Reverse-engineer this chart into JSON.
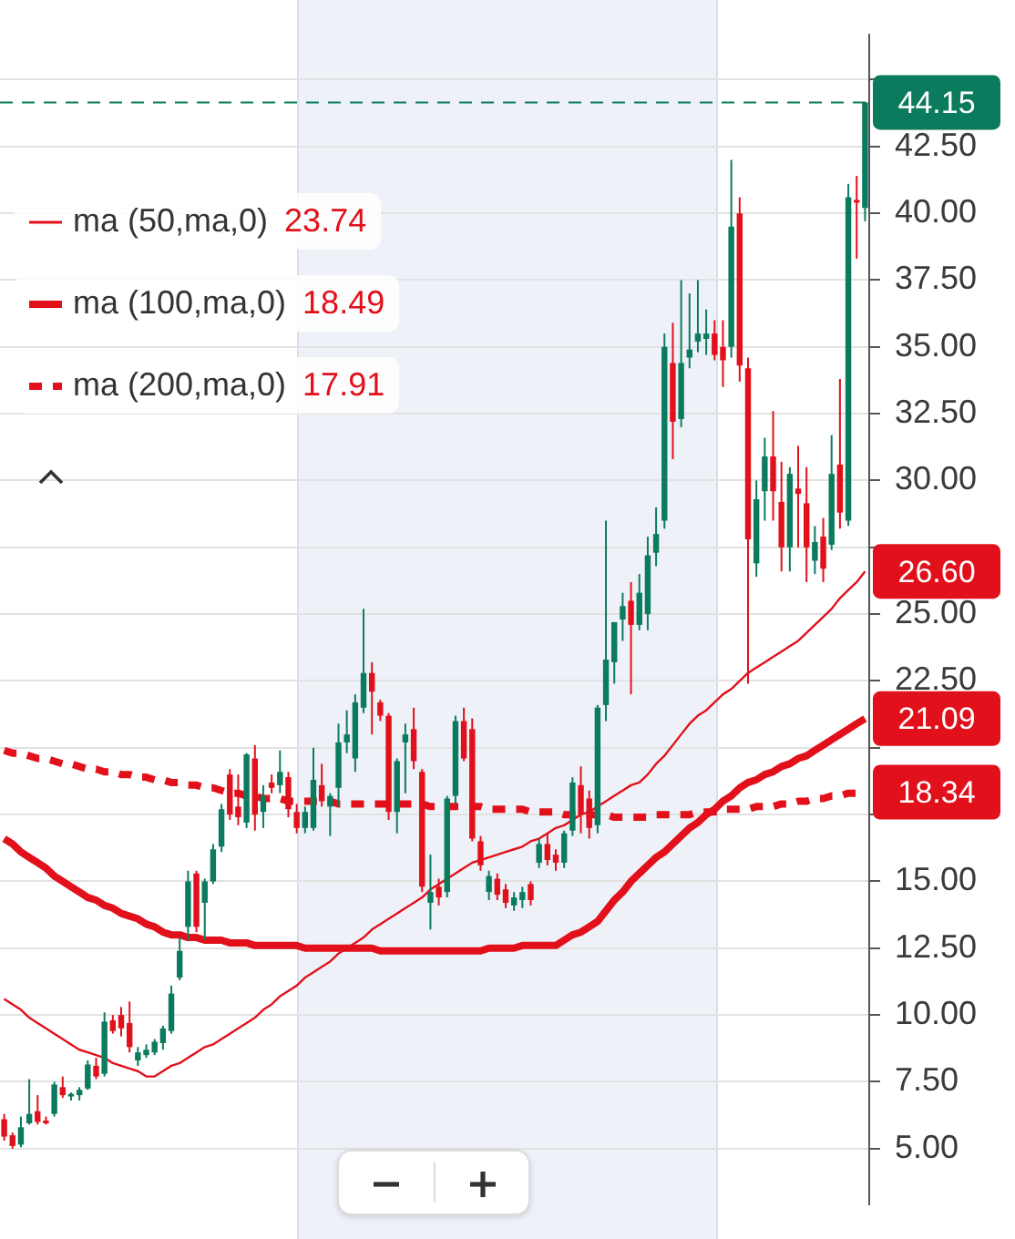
{
  "chart_data": {
    "type": "candlestick",
    "categories": [
      null,
      null,
      null,
      null,
      null,
      null,
      null,
      null,
      null,
      null,
      null,
      null,
      null,
      null,
      null,
      null,
      null,
      null,
      null,
      null,
      null,
      null,
      null,
      null,
      null,
      null,
      null,
      null,
      null,
      null,
      null,
      null,
      null,
      null,
      null,
      null,
      null,
      null,
      null,
      null,
      null,
      null,
      null,
      null,
      null,
      null,
      null,
      null,
      null,
      null,
      null,
      null,
      null,
      null,
      null,
      null,
      null,
      null,
      null,
      null,
      null,
      null,
      null,
      null,
      null,
      null,
      null,
      null,
      null,
      null,
      null,
      null,
      null,
      null,
      null,
      null,
      null,
      null,
      null,
      null,
      null,
      null,
      null,
      null,
      null,
      null,
      null,
      null,
      null,
      null,
      null,
      null,
      null,
      null,
      null,
      null,
      null,
      null,
      null,
      null,
      null,
      null,
      null,
      null
    ],
    "ohlc": [
      [
        6.1,
        6.3,
        5.3,
        5.45
      ],
      [
        5.5,
        5.6,
        5.0,
        5.1
      ],
      [
        5.15,
        6.2,
        5.05,
        5.8
      ],
      [
        5.95,
        7.6,
        5.9,
        6.3
      ],
      [
        6.4,
        7.0,
        5.9,
        6.0
      ],
      [
        6.05,
        6.2,
        5.9,
        5.95
      ],
      [
        6.3,
        7.5,
        6.2,
        7.4
      ],
      [
        7.3,
        7.7,
        6.9,
        7.0
      ],
      [
        6.95,
        7.1,
        6.8,
        7.05
      ],
      [
        7.0,
        7.3,
        6.8,
        7.2
      ],
      [
        7.25,
        8.3,
        7.2,
        8.15
      ],
      [
        8.1,
        8.4,
        7.6,
        7.7
      ],
      [
        7.8,
        10.1,
        7.7,
        9.75
      ],
      [
        9.8,
        10.0,
        9.3,
        9.4
      ],
      [
        10.0,
        10.3,
        9.2,
        9.5
      ],
      [
        9.7,
        10.5,
        8.6,
        8.8
      ],
      [
        8.3,
        8.8,
        8.1,
        8.6
      ],
      [
        8.5,
        8.9,
        8.4,
        8.7
      ],
      [
        8.6,
        9.1,
        8.5,
        9.0
      ],
      [
        8.95,
        9.6,
        8.7,
        9.5
      ],
      [
        9.4,
        11.1,
        9.3,
        10.8
      ],
      [
        11.4,
        12.9,
        11.3,
        12.4
      ],
      [
        13.3,
        15.4,
        12.8,
        15.0
      ],
      [
        15.3,
        15.4,
        13.1,
        13.3
      ],
      [
        14.2,
        15.1,
        12.8,
        15.0
      ],
      [
        15.0,
        16.4,
        14.9,
        16.2
      ],
      [
        16.3,
        17.9,
        16.1,
        17.7
      ],
      [
        19.0,
        19.2,
        17.3,
        17.5
      ],
      [
        17.8,
        19.0,
        17.1,
        17.4
      ],
      [
        17.2,
        19.8,
        17.0,
        19.75
      ],
      [
        19.6,
        20.1,
        16.9,
        17.5
      ],
      [
        17.6,
        18.6,
        17.0,
        18.2
      ],
      [
        18.7,
        19.0,
        18.3,
        18.5
      ],
      [
        18.6,
        19.9,
        18.3,
        19.1
      ],
      [
        18.9,
        19.1,
        17.4,
        17.7
      ],
      [
        17.6,
        17.9,
        16.8,
        17.0
      ],
      [
        17.0,
        17.8,
        16.8,
        17.6
      ],
      [
        17.0,
        20.0,
        16.9,
        18.8
      ],
      [
        18.6,
        19.4,
        17.8,
        18.0
      ],
      [
        17.8,
        18.3,
        16.7,
        18.2
      ],
      [
        18.5,
        20.9,
        17.8,
        20.2
      ],
      [
        20.2,
        21.4,
        19.8,
        20.5
      ],
      [
        19.6,
        22.0,
        19.1,
        21.7
      ],
      [
        21.5,
        25.2,
        21.3,
        22.8
      ],
      [
        22.8,
        23.2,
        20.5,
        22.1
      ],
      [
        21.7,
        21.8,
        21.0,
        21.2
      ],
      [
        21.2,
        21.3,
        17.3,
        17.6
      ],
      [
        17.6,
        19.6,
        16.8,
        19.5
      ],
      [
        20.2,
        20.9,
        18.3,
        20.5
      ],
      [
        20.7,
        21.5,
        19.2,
        19.5
      ],
      [
        19.1,
        19.2,
        14.6,
        14.8
      ],
      [
        14.2,
        16.0,
        13.2,
        14.6
      ],
      [
        14.8,
        15.1,
        14.1,
        14.4
      ],
      [
        14.6,
        18.2,
        14.4,
        18.1
      ],
      [
        18.2,
        21.2,
        17.9,
        21.0
      ],
      [
        21.0,
        21.5,
        19.5,
        19.6
      ],
      [
        20.7,
        21.1,
        16.5,
        16.6
      ],
      [
        16.5,
        16.7,
        15.4,
        15.6
      ],
      [
        14.6,
        15.4,
        14.3,
        15.2
      ],
      [
        15.1,
        15.3,
        14.3,
        14.5
      ],
      [
        14.7,
        14.9,
        14.0,
        14.2
      ],
      [
        14.1,
        14.6,
        13.9,
        14.4
      ],
      [
        14.3,
        14.8,
        14.0,
        14.6
      ],
      [
        14.9,
        15.0,
        14.1,
        14.3
      ],
      [
        15.7,
        16.6,
        15.5,
        16.4
      ],
      [
        16.4,
        16.8,
        15.6,
        15.8
      ],
      [
        16.0,
        16.2,
        15.4,
        15.7
      ],
      [
        15.7,
        16.9,
        15.5,
        16.8
      ],
      [
        16.9,
        18.9,
        16.7,
        18.7
      ],
      [
        18.6,
        19.3,
        16.8,
        17.5
      ],
      [
        18.1,
        18.4,
        16.6,
        17.0
      ],
      [
        17.1,
        21.6,
        16.8,
        21.5
      ],
      [
        21.6,
        28.5,
        21.0,
        23.3
      ],
      [
        23.2,
        24.7,
        22.4,
        24.7
      ],
      [
        24.8,
        25.8,
        24.0,
        25.3
      ],
      [
        25.5,
        26.2,
        22.0,
        24.6
      ],
      [
        24.6,
        26.5,
        24.4,
        25.8
      ],
      [
        25.0,
        27.9,
        24.4,
        27.2
      ],
      [
        27.3,
        29.0,
        26.8,
        28.0
      ],
      [
        28.5,
        35.5,
        28.2,
        35.0
      ],
      [
        34.4,
        35.9,
        30.8,
        32.2
      ],
      [
        32.3,
        37.5,
        32.0,
        34.4
      ],
      [
        34.6,
        37.0,
        34.2,
        34.9
      ],
      [
        35.2,
        37.5,
        34.8,
        35.5
      ],
      [
        35.3,
        36.4,
        34.7,
        35.5
      ],
      [
        35.5,
        36.0,
        34.5,
        34.7
      ],
      [
        35.0,
        36.0,
        33.5,
        34.5
      ],
      [
        35.0,
        42.0,
        34.6,
        39.5
      ],
      [
        40.0,
        40.6,
        33.7,
        34.3
      ],
      [
        34.2,
        34.6,
        22.4,
        27.8
      ],
      [
        26.9,
        30.0,
        26.4,
        29.3
      ],
      [
        29.6,
        31.6,
        28.5,
        30.9
      ],
      [
        30.9,
        32.6,
        28.5,
        29.6
      ],
      [
        29.2,
        30.7,
        26.6,
        27.5
      ],
      [
        27.5,
        30.5,
        26.6,
        30.25
      ],
      [
        29.7,
        31.3,
        27.5,
        29.5
      ],
      [
        29.15,
        30.5,
        26.2,
        27.5
      ],
      [
        27.0,
        28.3,
        26.5,
        27.7
      ],
      [
        27.9,
        28.6,
        26.2,
        26.7
      ],
      [
        27.6,
        31.7,
        27.4,
        30.25
      ],
      [
        30.6,
        33.8,
        28.2,
        28.8
      ],
      [
        28.5,
        41.1,
        28.3,
        40.6
      ],
      [
        40.5,
        41.4,
        38.3,
        40.4
      ],
      [
        40.2,
        44.15,
        39.7,
        44.15
      ]
    ],
    "colors": [
      "#e2101b",
      "#e2101b",
      "#0b7b5e",
      "#0b7b5e",
      "#e2101b",
      "#e2101b",
      "#0b7b5e",
      "#e2101b",
      "#0b7b5e",
      "#0b7b5e",
      "#0b7b5e",
      "#e2101b",
      "#0b7b5e",
      "#e2101b",
      "#e2101b",
      "#e2101b",
      "#0b7b5e",
      "#0b7b5e",
      "#0b7b5e",
      "#0b7b5e",
      "#0b7b5e",
      "#0b7b5e",
      "#0b7b5e",
      "#e2101b",
      "#0b7b5e",
      "#0b7b5e",
      "#0b7b5e",
      "#e2101b",
      "#e2101b",
      "#0b7b5e",
      "#e2101b",
      "#0b7b5e",
      "#e2101b",
      "#0b7b5e",
      "#e2101b",
      "#e2101b",
      "#0b7b5e",
      "#0b7b5e",
      "#e2101b",
      "#0b7b5e",
      "#0b7b5e",
      "#0b7b5e",
      "#0b7b5e",
      "#0b7b5e",
      "#e2101b",
      "#e2101b",
      "#e2101b",
      "#0b7b5e",
      "#0b7b5e",
      "#e2101b",
      "#e2101b",
      "#0b7b5e",
      "#e2101b",
      "#0b7b5e",
      "#0b7b5e",
      "#e2101b",
      "#e2101b",
      "#e2101b",
      "#0b7b5e",
      "#e2101b",
      "#e2101b",
      "#0b7b5e",
      "#0b7b5e",
      "#e2101b",
      "#0b7b5e",
      "#e2101b",
      "#e2101b",
      "#0b7b5e",
      "#0b7b5e",
      "#e2101b",
      "#e2101b",
      "#0b7b5e",
      "#0b7b5e",
      "#0b7b5e",
      "#0b7b5e",
      "#e2101b",
      "#0b7b5e",
      "#0b7b5e",
      "#0b7b5e",
      "#0b7b5e",
      "#e2101b",
      "#0b7b5e",
      "#0b7b5e",
      "#0b7b5e",
      "#0b7b5e",
      "#e2101b",
      "#e2101b",
      "#0b7b5e",
      "#e2101b",
      "#e2101b",
      "#0b7b5e",
      "#0b7b5e",
      "#e2101b",
      "#e2101b",
      "#0b7b5e",
      "#e2101b",
      "#e2101b",
      "#0b7b5e",
      "#e2101b",
      "#0b7b5e",
      "#e2101b",
      "#0b7b5e",
      "#e2101b",
      "#0b7b5e"
    ],
    "series": [
      {
        "name": "ma (50,ma,0)",
        "type": "line",
        "color": "#e2101b",
        "line_style": "solid",
        "values": [
          10.6,
          10.4,
          10.2,
          9.9,
          9.7,
          9.5,
          9.3,
          9.1,
          8.9,
          8.7,
          8.6,
          8.5,
          8.4,
          8.2,
          8.1,
          8.0,
          7.9,
          7.7,
          7.7,
          7.9,
          8.1,
          8.2,
          8.4,
          8.6,
          8.8,
          8.9,
          9.1,
          9.3,
          9.5,
          9.7,
          9.9,
          10.2,
          10.4,
          10.7,
          10.9,
          11.1,
          11.4,
          11.6,
          11.8,
          12.0,
          12.3,
          12.5,
          12.7,
          12.9,
          13.2,
          13.4,
          13.6,
          13.8,
          14.0,
          14.2,
          14.4,
          14.7,
          14.9,
          15.1,
          15.3,
          15.5,
          15.7,
          15.8,
          15.9,
          16.0,
          16.1,
          16.2,
          16.3,
          16.5,
          16.6,
          16.8,
          17.0,
          17.1,
          17.3,
          17.5,
          17.6,
          17.8,
          18.0,
          18.2,
          18.4,
          18.6,
          18.7,
          19.0,
          19.4,
          19.7,
          20.1,
          20.5,
          20.9,
          21.2,
          21.4,
          21.7,
          22.0,
          22.2,
          22.5,
          22.8,
          23.0,
          23.2,
          23.4,
          23.6,
          23.8,
          24.0,
          24.3,
          24.6,
          24.9,
          25.2,
          25.6,
          25.9,
          26.2,
          26.6
        ]
      },
      {
        "name": "ma (100,ma,0)",
        "type": "line",
        "color": "#e2101b",
        "line_style": "solid",
        "values": [
          16.6,
          16.4,
          16.1,
          15.9,
          15.7,
          15.5,
          15.2,
          15.0,
          14.8,
          14.6,
          14.4,
          14.3,
          14.1,
          14.0,
          13.8,
          13.7,
          13.6,
          13.4,
          13.3,
          13.1,
          13.0,
          13.0,
          12.9,
          12.9,
          12.8,
          12.8,
          12.8,
          12.7,
          12.7,
          12.7,
          12.6,
          12.6,
          12.6,
          12.6,
          12.6,
          12.6,
          12.5,
          12.5,
          12.5,
          12.5,
          12.5,
          12.5,
          12.5,
          12.5,
          12.5,
          12.4,
          12.4,
          12.4,
          12.4,
          12.4,
          12.4,
          12.4,
          12.4,
          12.4,
          12.4,
          12.4,
          12.4,
          12.4,
          12.5,
          12.5,
          12.5,
          12.5,
          12.6,
          12.6,
          12.6,
          12.6,
          12.6,
          12.8,
          13.0,
          13.1,
          13.3,
          13.5,
          13.9,
          14.3,
          14.6,
          15.0,
          15.3,
          15.6,
          15.9,
          16.1,
          16.4,
          16.7,
          17.0,
          17.2,
          17.5,
          17.7,
          18.0,
          18.2,
          18.5,
          18.7,
          18.8,
          19.0,
          19.1,
          19.3,
          19.4,
          19.6,
          19.7,
          19.9,
          20.1,
          20.3,
          20.5,
          20.7,
          20.9,
          21.09
        ]
      },
      {
        "name": "ma (200,ma,0)",
        "type": "line",
        "color": "#e2101b",
        "line_style": "dotted",
        "values": [
          19.9,
          19.8,
          19.8,
          19.7,
          19.6,
          19.6,
          19.5,
          19.4,
          19.4,
          19.3,
          19.2,
          19.2,
          19.1,
          19.1,
          19.0,
          19.0,
          18.9,
          18.9,
          18.8,
          18.8,
          18.7,
          18.7,
          18.6,
          18.6,
          18.5,
          18.5,
          18.4,
          18.3,
          18.3,
          18.2,
          18.2,
          18.1,
          18.1,
          18.1,
          18.0,
          18.0,
          18.0,
          18.0,
          18.0,
          18.0,
          17.9,
          17.9,
          17.9,
          17.9,
          17.9,
          17.9,
          17.9,
          17.9,
          17.9,
          17.9,
          17.9,
          17.8,
          17.8,
          17.8,
          17.8,
          17.8,
          17.8,
          17.8,
          17.7,
          17.7,
          17.7,
          17.7,
          17.7,
          17.6,
          17.6,
          17.6,
          17.6,
          17.5,
          17.5,
          17.5,
          17.5,
          17.5,
          17.5,
          17.4,
          17.4,
          17.4,
          17.4,
          17.4,
          17.5,
          17.5,
          17.5,
          17.5,
          17.5,
          17.6,
          17.6,
          17.6,
          17.7,
          17.7,
          17.7,
          17.7,
          17.8,
          17.8,
          17.8,
          17.9,
          17.9,
          18.0,
          18.0,
          18.1,
          18.1,
          18.2,
          18.2,
          18.3,
          18.3,
          18.34
        ]
      }
    ],
    "ylim": [
      2.9,
      46.7
    ],
    "yticks": [
      {
        "value": 5,
        "label": "5.00"
      },
      {
        "value": 7.5,
        "label": "7.50"
      },
      {
        "value": 10,
        "label": "10.00"
      },
      {
        "value": 12.5,
        "label": "12.50"
      },
      {
        "value": 15,
        "label": "15.00"
      },
      {
        "value": 17.5,
        "label": null
      },
      {
        "value": 20,
        "label": null
      },
      {
        "value": 22.5,
        "label": "22.50"
      },
      {
        "value": 25,
        "label": "25.00"
      },
      {
        "value": 27.5,
        "label": null
      },
      {
        "value": 30,
        "label": "30.00"
      },
      {
        "value": 32.5,
        "label": "32.50"
      },
      {
        "value": 35,
        "label": "35.00"
      },
      {
        "value": 37.5,
        "label": "37.50"
      },
      {
        "value": 40,
        "label": "40.00"
      },
      {
        "value": 42.5,
        "label": "42.50"
      },
      {
        "value": 45,
        "label": null
      }
    ],
    "grid": "y",
    "legend": "top left",
    "ref_lines": [
      {
        "axis": "y",
        "value": 44.15,
        "label": "44.15",
        "color": "#0b7b5e",
        "line_style": "dashed"
      }
    ],
    "annotations": [
      "23.74",
      "18.49",
      "17.91",
      "26.60",
      "21.09",
      "18.34"
    ]
  }
}
